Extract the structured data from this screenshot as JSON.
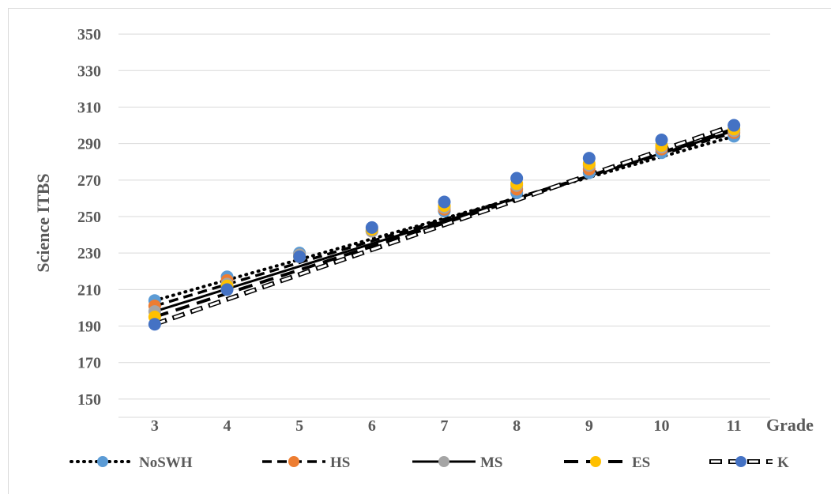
{
  "chart_data": {
    "type": "line",
    "title": "",
    "xlabel": "Grade",
    "ylabel": "Science ITBS",
    "x": [
      3,
      4,
      5,
      6,
      7,
      8,
      9,
      10,
      11
    ],
    "y_ticks": [
      150,
      170,
      190,
      210,
      230,
      250,
      270,
      290,
      310,
      330,
      350
    ],
    "ylim": [
      140,
      360
    ],
    "grid": true,
    "legend_position": "bottom",
    "series": [
      {
        "name": "NoSWH",
        "line_style": "dotted",
        "marker_color": "#5B9BD5",
        "values": [
          204,
          217,
          230,
          242,
          253,
          263,
          274,
          285,
          294
        ]
      },
      {
        "name": "HS",
        "line_style": "dashed",
        "marker_color": "#ED7D31",
        "values": [
          201,
          215,
          229,
          242,
          254,
          265,
          276,
          287,
          296
        ]
      },
      {
        "name": "MS",
        "line_style": "solid",
        "marker_color": "#A5A5A5",
        "values": [
          198,
          213,
          229,
          242,
          255,
          267,
          278,
          288,
          297
        ]
      },
      {
        "name": "ES",
        "line_style": "long-dash",
        "marker_color": "#FFC000",
        "values": [
          195,
          212,
          228,
          243,
          256,
          268,
          279,
          289,
          298
        ]
      },
      {
        "name": "K",
        "line_style": "hollow-dash",
        "marker_color": "#4472C4",
        "values": [
          191,
          210,
          228,
          244,
          258,
          271,
          282,
          292,
          300
        ]
      }
    ]
  }
}
